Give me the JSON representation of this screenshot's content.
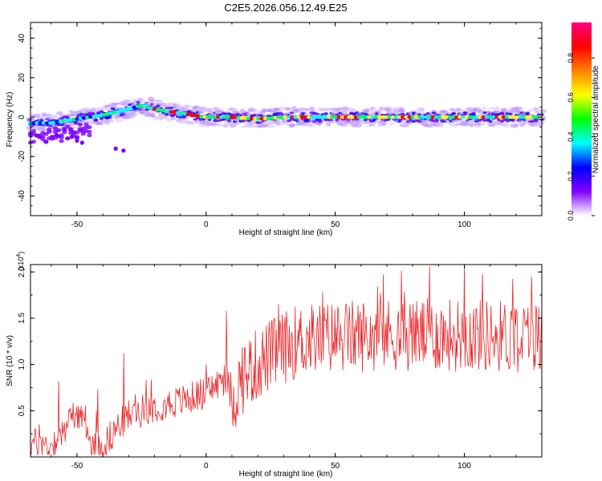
{
  "title": "C2E5.2026.056.12.49.E25",
  "chart_data": [
    {
      "type": "heatmap",
      "xlabel": "Height of straight line (km)",
      "ylabel": "Frequency (Hz)",
      "xlim": [
        -68,
        130
      ],
      "ylim": [
        -50,
        48
      ],
      "xticks": [
        -50,
        0,
        50,
        100
      ],
      "yticks": [
        40,
        20,
        0,
        -20,
        -40
      ],
      "ridge_frequency_hz": [
        [
          -68,
          -3
        ],
        [
          -60,
          -3
        ],
        [
          -50,
          -1
        ],
        [
          -40,
          1
        ],
        [
          -30,
          4
        ],
        [
          -25,
          6
        ],
        [
          -20,
          4
        ],
        [
          -15,
          3
        ],
        [
          -10,
          2
        ],
        [
          -5,
          1
        ],
        [
          0,
          0
        ],
        [
          10,
          0
        ],
        [
          20,
          -1
        ],
        [
          30,
          0
        ],
        [
          50,
          0
        ],
        [
          80,
          0
        ],
        [
          100,
          0
        ],
        [
          130,
          0
        ]
      ],
      "scattered_points": [
        [
          -35,
          -16
        ],
        [
          -32,
          -17
        ],
        [
          -48,
          -13
        ],
        [
          -50,
          -12
        ],
        [
          -52,
          -10
        ],
        [
          -58,
          -9
        ]
      ],
      "colorbar": {
        "label": "Normalized spectral amplitude",
        "ticks": [
          "0.0",
          "0.2",
          "0.4",
          "0.6",
          "0.8"
        ],
        "range": [
          0,
          0.98
        ],
        "colors": [
          "#ffffff",
          "#8000ff",
          "#0000ff",
          "#00ffff",
          "#00ff00",
          "#ffff00",
          "#ff8000",
          "#ff0000",
          "#ff0080"
        ]
      }
    },
    {
      "type": "line",
      "xlabel": "Height of straight line (km)",
      "ylabel": "SNR (10 * v/v)",
      "scale_label": "(x10",
      "scale_exp": "4",
      "scale_close": ")",
      "xlim": [
        -68,
        130
      ],
      "ylim": [
        0,
        2.08
      ],
      "xticks": [
        -50,
        0,
        50,
        100
      ],
      "yticks": [
        0.5,
        1.0,
        1.5,
        2.0
      ],
      "ytick_labels": [
        "0.5",
        "1.0",
        "1.5",
        "2.0"
      ],
      "color": "#e8282b",
      "trend": [
        [
          -68,
          0.15
        ],
        [
          -60,
          0.12
        ],
        [
          -55,
          0.3
        ],
        [
          -50,
          0.5
        ],
        [
          -48,
          0.35
        ],
        [
          -45,
          0.15
        ],
        [
          -40,
          0.12
        ],
        [
          -35,
          0.3
        ],
        [
          -30,
          0.45
        ],
        [
          -20,
          0.55
        ],
        [
          -10,
          0.6
        ],
        [
          0,
          0.7
        ],
        [
          8,
          0.85
        ],
        [
          10,
          0.6
        ],
        [
          15,
          0.9
        ],
        [
          25,
          1.1
        ],
        [
          35,
          1.25
        ],
        [
          50,
          1.3
        ],
        [
          70,
          1.32
        ],
        [
          100,
          1.32
        ],
        [
          130,
          1.3
        ]
      ],
      "peaks": [
        [
          -57,
          0.82
        ],
        [
          -42,
          0.73
        ],
        [
          -32,
          1.12
        ],
        [
          8,
          1.58
        ],
        [
          28,
          1.65
        ],
        [
          45,
          1.78
        ],
        [
          100,
          2.05
        ],
        [
          107,
          1.98
        ],
        [
          126,
          1.95
        ]
      ]
    }
  ]
}
